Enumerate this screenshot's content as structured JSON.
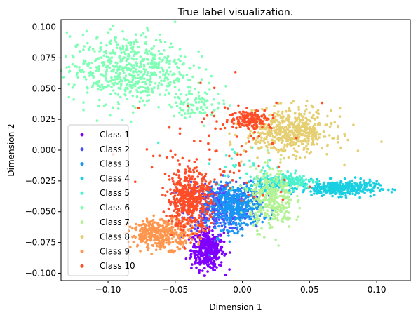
{
  "chart_data": {
    "type": "scatter",
    "title": "True label visualization.",
    "xlabel": "Dimension 1",
    "ylabel": "Dimension 2",
    "xlim": [
      -0.135,
      0.125
    ],
    "ylim": [
      -0.106,
      0.106
    ],
    "xticks": [
      -0.1,
      -0.05,
      0.0,
      0.05,
      0.1
    ],
    "xtick_labels": [
      "−0.10",
      "−0.05",
      "0.00",
      "0.05",
      "0.10"
    ],
    "yticks": [
      -0.1,
      -0.075,
      -0.05,
      -0.025,
      0.0,
      0.025,
      0.05,
      0.075,
      0.1
    ],
    "ytick_labels": [
      "−0.100",
      "−0.075",
      "−0.050",
      "−0.025",
      "0.000",
      "0.025",
      "0.050",
      "0.075",
      "0.100"
    ],
    "grid": false,
    "legend_position": "lower-left",
    "series": [
      {
        "name": "Class 1",
        "color": "#8000ff",
        "clusters": [
          {
            "cx": -0.026,
            "cy": -0.081,
            "sx": 0.006,
            "sy": 0.008,
            "n": 420
          }
        ]
      },
      {
        "name": "Class 2",
        "color": "#4d4dfc",
        "clusters": [
          {
            "cx": -0.018,
            "cy": -0.045,
            "sx": 0.012,
            "sy": 0.01,
            "n": 380
          }
        ]
      },
      {
        "name": "Class 3",
        "color": "#1996f3",
        "clusters": [
          {
            "cx": -0.005,
            "cy": -0.046,
            "sx": 0.01,
            "sy": 0.009,
            "n": 420
          }
        ]
      },
      {
        "name": "Class 4",
        "color": "#1acfe2",
        "clusters": [
          {
            "cx": 0.072,
            "cy": -0.031,
            "sx": 0.014,
            "sy": 0.003,
            "n": 360
          },
          {
            "cx": 0.018,
            "cy": -0.028,
            "sx": 0.008,
            "sy": 0.003,
            "n": 80
          }
        ]
      },
      {
        "name": "Class 5",
        "color": "#4cf2ce",
        "clusters": [
          {
            "cx": 0.035,
            "cy": -0.025,
            "sx": 0.01,
            "sy": 0.003,
            "n": 140
          },
          {
            "cx": 0.005,
            "cy": -0.015,
            "sx": 0.02,
            "sy": 0.01,
            "n": 40
          }
        ]
      },
      {
        "name": "Class 6",
        "color": "#80ffb4",
        "clusters": [
          {
            "cx": -0.085,
            "cy": 0.066,
            "sx": 0.022,
            "sy": 0.014,
            "n": 620
          },
          {
            "cx": -0.035,
            "cy": 0.038,
            "sx": 0.01,
            "sy": 0.006,
            "n": 90
          }
        ]
      },
      {
        "name": "Class 7",
        "color": "#b3f295",
        "clusters": [
          {
            "cx": 0.022,
            "cy": -0.04,
            "sx": 0.008,
            "sy": 0.012,
            "n": 320
          }
        ]
      },
      {
        "name": "Class 8",
        "color": "#e6cf73",
        "clusters": [
          {
            "cx": 0.035,
            "cy": 0.015,
            "sx": 0.016,
            "sy": 0.009,
            "n": 560
          }
        ]
      },
      {
        "name": "Class 9",
        "color": "#ff964e",
        "clusters": [
          {
            "cx": -0.06,
            "cy": -0.068,
            "sx": 0.012,
            "sy": 0.006,
            "n": 380
          }
        ]
      },
      {
        "name": "Class 10",
        "color": "#ff4d27",
        "clusters": [
          {
            "cx": -0.04,
            "cy": -0.04,
            "sx": 0.008,
            "sy": 0.012,
            "n": 480
          },
          {
            "cx": 0.006,
            "cy": 0.025,
            "sx": 0.008,
            "sy": 0.004,
            "n": 160
          },
          {
            "cx": -0.015,
            "cy": -0.005,
            "sx": 0.03,
            "sy": 0.025,
            "n": 90
          }
        ]
      }
    ]
  }
}
